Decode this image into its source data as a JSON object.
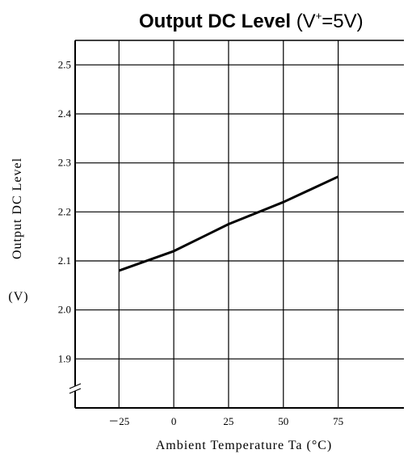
{
  "title": {
    "bold_text": "Output DC Level",
    "open": "(V",
    "superscript": "+",
    "close": "=5V)"
  },
  "chart_data": {
    "type": "line",
    "title": "Output DC Level (V+=5V)",
    "xlabel": "Ambient Temperature Ta (°C)",
    "ylabel": "Output DC Level",
    "ylabel_unit": "(V)",
    "x_ticks": [
      -25,
      0,
      25,
      50,
      75
    ],
    "x_tick_labels": [
      "－25",
      "0",
      "25",
      "50",
      "75"
    ],
    "y_ticks": [
      1.9,
      2.0,
      2.1,
      2.2,
      2.3,
      2.4,
      2.5
    ],
    "y_tick_labels": [
      "1.9",
      "2.0",
      "2.1",
      "2.2",
      "2.3",
      "2.4",
      "2.5"
    ],
    "xlim": [
      -45,
      105
    ],
    "ylim": [
      1.8,
      2.55
    ],
    "y_axis_break": true,
    "grid": true,
    "series": [
      {
        "x": [
          -25,
          0,
          25,
          50,
          75
        ],
        "y": [
          2.08,
          2.12,
          2.175,
          2.22,
          2.272
        ]
      }
    ]
  }
}
